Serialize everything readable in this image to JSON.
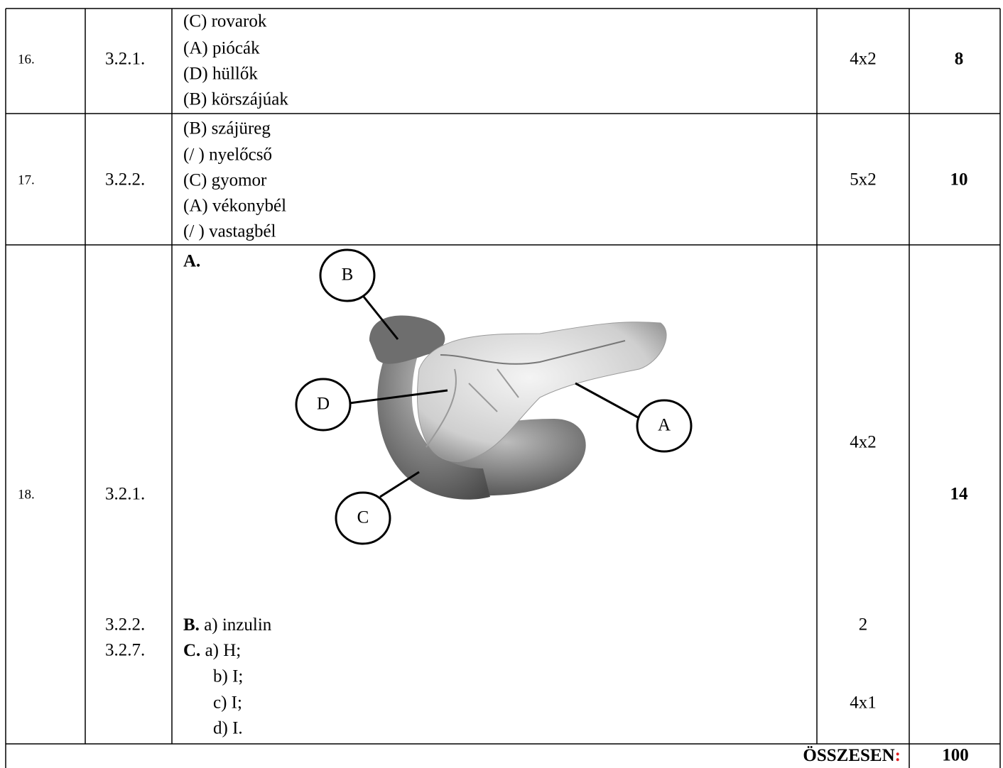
{
  "rows": [
    {
      "number": "16.",
      "code": "3.2.1.",
      "answers": [
        "(C) rovarok",
        "(A) piócák",
        "(D) hüllők",
        "(B) körszájúak"
      ],
      "scoring": "4x2",
      "points": "8"
    },
    {
      "number": "17.",
      "code": "3.2.2.",
      "answers": [
        "(B) szájüreg",
        "(/ ) nyelőcső",
        "(C) gyomor",
        "(A) vékonybél",
        "(/ ) vastagbél"
      ],
      "scoring": "5x2",
      "points": "10"
    },
    {
      "number": "18.",
      "codes": [
        "3.2.1.",
        "3.2.2.",
        "3.2.7."
      ],
      "part_a": {
        "label": "A.",
        "diagram_labels": [
          "B",
          "D",
          "A",
          "C"
        ],
        "scoring": "4x2"
      },
      "part_b": {
        "label": "B.",
        "answer": "a) inzulin",
        "scoring": "2"
      },
      "part_c": {
        "label": "C.",
        "answers": [
          "a) H;",
          "b) I;",
          "c) I;",
          "d) I."
        ],
        "scoring": "4x1"
      },
      "points": "14"
    }
  ],
  "total": {
    "label": "ÖSSZESEN",
    "separator": ":",
    "points": "100"
  }
}
